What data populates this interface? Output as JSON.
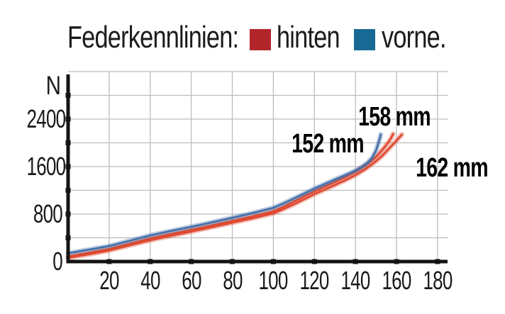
{
  "title": {
    "text": "Federkennlinien:",
    "legend": [
      {
        "label": "hinten",
        "color": "#b2262b"
      },
      {
        "label": "vorne.",
        "color": "#186a94"
      }
    ]
  },
  "chart_data": {
    "type": "line",
    "title": "Federkennlinien",
    "xlabel": "",
    "ylabel": "N",
    "xlim": [
      0,
      186
    ],
    "ylim": [
      0,
      3200
    ],
    "grid": true,
    "legend_position": "top",
    "x_ticks": [
      20,
      40,
      60,
      80,
      100,
      120,
      140,
      160,
      180
    ],
    "y_tick_marks": [
      400,
      800,
      1200,
      1600,
      2000,
      2400,
      2800
    ],
    "y_tick_labels": [
      0,
      800,
      1600,
      2400
    ],
    "y_grid": [
      400,
      800,
      1200,
      1600,
      2000,
      2400,
      2800,
      3200
    ],
    "series": [
      {
        "name": "hinten",
        "color": "#df4a31",
        "end_label": "158 mm",
        "points": [
          [
            0,
            85
          ],
          [
            10,
            145
          ],
          [
            20,
            212
          ],
          [
            30,
            300
          ],
          [
            40,
            388
          ],
          [
            50,
            462
          ],
          [
            60,
            534
          ],
          [
            70,
            608
          ],
          [
            80,
            684
          ],
          [
            90,
            762
          ],
          [
            100,
            845
          ],
          [
            105,
            922
          ],
          [
            110,
            1011
          ],
          [
            115,
            1098
          ],
          [
            120,
            1185
          ],
          [
            125,
            1263
          ],
          [
            130,
            1341
          ],
          [
            135,
            1425
          ],
          [
            140,
            1510
          ],
          [
            145,
            1625
          ],
          [
            148,
            1700
          ],
          [
            151,
            1800
          ],
          [
            154,
            1920
          ],
          [
            156,
            2010
          ],
          [
            157.5,
            2090
          ],
          [
            158.4,
            2150
          ]
        ]
      },
      {
        "name": "hinten",
        "color": "#df4a31",
        "end_label": "162 mm",
        "points": [
          [
            0,
            62
          ],
          [
            10,
            122
          ],
          [
            20,
            186
          ],
          [
            30,
            272
          ],
          [
            40,
            358
          ],
          [
            50,
            432
          ],
          [
            60,
            504
          ],
          [
            70,
            578
          ],
          [
            80,
            654
          ],
          [
            90,
            730
          ],
          [
            100,
            812
          ],
          [
            105,
            885
          ],
          [
            110,
            965
          ],
          [
            115,
            1050
          ],
          [
            120,
            1135
          ],
          [
            125,
            1212
          ],
          [
            130,
            1290
          ],
          [
            135,
            1370
          ],
          [
            140,
            1455
          ],
          [
            145,
            1560
          ],
          [
            150,
            1690
          ],
          [
            153,
            1780
          ],
          [
            156,
            1890
          ],
          [
            159,
            2000
          ],
          [
            161,
            2075
          ],
          [
            162.6,
            2140
          ]
        ]
      },
      {
        "name": "vorne",
        "color": "#4571ab",
        "end_label": "152 mm",
        "points": [
          [
            0,
            140
          ],
          [
            10,
            200
          ],
          [
            20,
            262
          ],
          [
            30,
            350
          ],
          [
            40,
            440
          ],
          [
            50,
            515
          ],
          [
            60,
            585
          ],
          [
            70,
            660
          ],
          [
            80,
            737
          ],
          [
            90,
            818
          ],
          [
            100,
            905
          ],
          [
            105,
            980
          ],
          [
            110,
            1063
          ],
          [
            115,
            1145
          ],
          [
            120,
            1230
          ],
          [
            125,
            1305
          ],
          [
            130,
            1381
          ],
          [
            135,
            1455
          ],
          [
            140,
            1532
          ],
          [
            143,
            1590
          ],
          [
            146,
            1665
          ],
          [
            148,
            1745
          ],
          [
            150,
            1870
          ],
          [
            151,
            1975
          ],
          [
            152,
            2090
          ],
          [
            152.3,
            2140
          ]
        ]
      }
    ],
    "annotations": [
      {
        "text": "158 mm",
        "x": 159,
        "y": 2430
      },
      {
        "text": "152 mm",
        "x": 126.5,
        "y": 1985
      },
      {
        "text": "162 mm",
        "x": 187,
        "y": 1575
      }
    ]
  }
}
